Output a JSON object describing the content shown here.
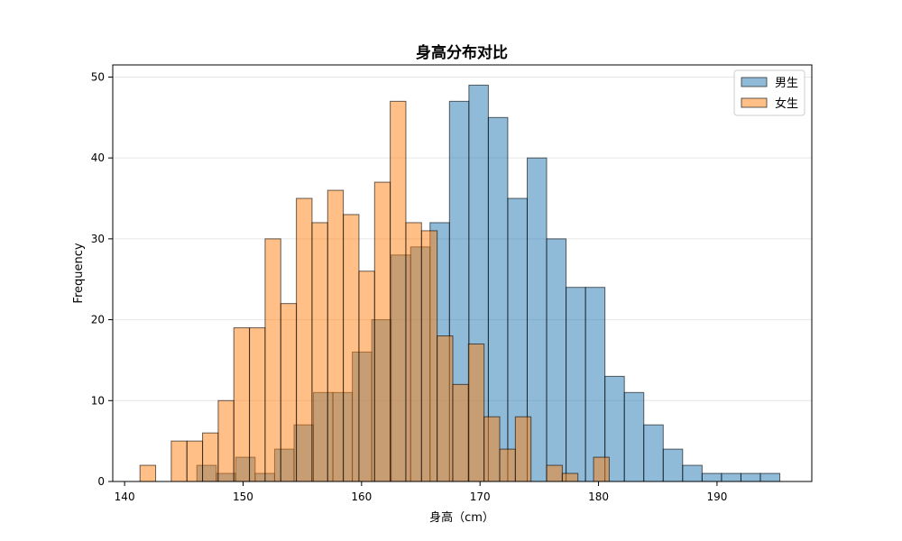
{
  "chart_data": {
    "type": "bar",
    "subtype": "histogram",
    "title": "身高分布对比",
    "xlabel": "身高（cm）",
    "ylabel": "Frequency",
    "xlim": [
      139,
      198
    ],
    "ylim": [
      0,
      51.5
    ],
    "xticks": [
      140,
      150,
      160,
      170,
      180,
      190
    ],
    "yticks": [
      0,
      10,
      20,
      30,
      40,
      50
    ],
    "grid": "y",
    "legend_position": "top-right",
    "series": [
      {
        "name": "男生",
        "color": "#1f77b4",
        "opacity": 0.5,
        "bin_start": 146.1,
        "bin_width": 1.64,
        "values": [
          2,
          1,
          3,
          1,
          4,
          7,
          11,
          11,
          16,
          20,
          28,
          29,
          32,
          47,
          49,
          45,
          35,
          40,
          30,
          24,
          24,
          13,
          11,
          7,
          4,
          2,
          1,
          1,
          1,
          1
        ]
      },
      {
        "name": "女生",
        "color": "#ff7f0e",
        "opacity": 0.5,
        "bin_start": 141.3,
        "bin_width": 1.32,
        "values": [
          2,
          0,
          5,
          5,
          6,
          10,
          19,
          19,
          30,
          22,
          35,
          32,
          36,
          33,
          26,
          37,
          47,
          32,
          31,
          18,
          12,
          17,
          8,
          4,
          8,
          0,
          2,
          1,
          0,
          3
        ]
      }
    ]
  }
}
